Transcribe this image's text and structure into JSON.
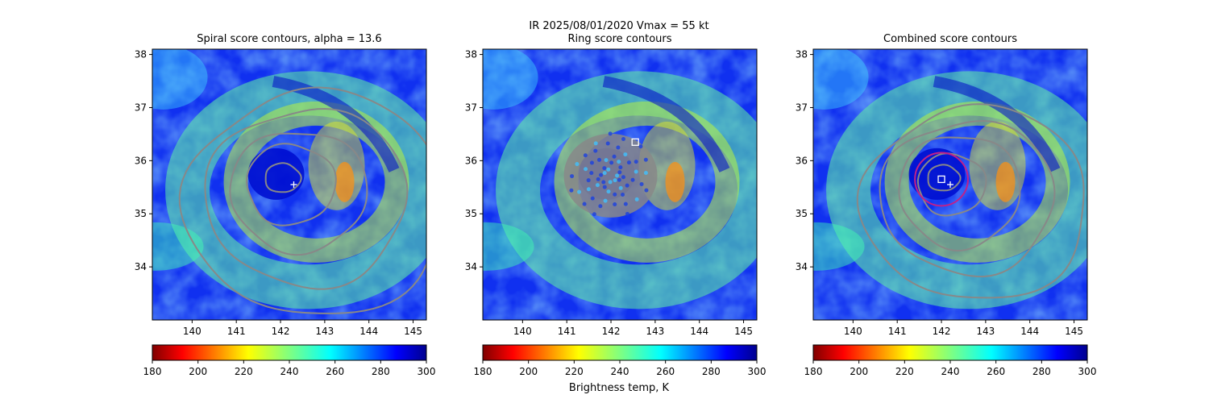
{
  "figure": {
    "suptitle_line1": "IR  2025/08/01/2020    Vmax = 55 kt",
    "colorbar_label": "Brightness temp, K"
  },
  "chart_data": [
    {
      "type": "heatmap",
      "title": "Spiral score contours, alpha = 13.6",
      "xlim": [
        139.1,
        145.3
      ],
      "ylim": [
        33.0,
        38.1
      ],
      "xticks": [
        "140",
        "141",
        "142",
        "143",
        "144",
        "145"
      ],
      "yticks": [
        "34",
        "35",
        "36",
        "37",
        "38"
      ],
      "center": [
        141.9,
        35.75
      ],
      "contours": "spiral",
      "markers": [
        {
          "kind": "plus",
          "lon": 142.3,
          "lat": 35.55
        }
      ],
      "colorbar": {
        "range": [
          180,
          300
        ],
        "ticks": [
          "180",
          "200",
          "220",
          "240",
          "260",
          "280",
          "300"
        ],
        "colormap": "jet_r"
      }
    },
    {
      "type": "heatmap",
      "title": "Ring score contours",
      "xlim": [
        139.1,
        145.3
      ],
      "ylim": [
        33.0,
        38.1
      ],
      "xticks": [
        "140",
        "141",
        "142",
        "143",
        "144",
        "145"
      ],
      "yticks": [
        "34",
        "35",
        "36",
        "37",
        "38"
      ],
      "center": [
        141.9,
        35.75
      ],
      "contours": "ring",
      "markers": [
        {
          "kind": "square",
          "lon": 142.55,
          "lat": 36.35
        }
      ],
      "colorbar": {
        "range": [
          180,
          300
        ],
        "ticks": [
          "180",
          "200",
          "220",
          "240",
          "260",
          "280",
          "300"
        ],
        "colormap": "jet_r"
      }
    },
    {
      "type": "heatmap",
      "title": "Combined score contours",
      "xlim": [
        139.1,
        145.3
      ],
      "ylim": [
        33.0,
        38.1
      ],
      "xticks": [
        "140",
        "141",
        "142",
        "143",
        "144",
        "145"
      ],
      "yticks": [
        "34",
        "35",
        "36",
        "37",
        "38"
      ],
      "center": [
        141.9,
        35.75
      ],
      "contours": "combined",
      "markers": [
        {
          "kind": "plus",
          "lon": 142.2,
          "lat": 35.55
        },
        {
          "kind": "square",
          "lon": 142.0,
          "lat": 35.65
        },
        {
          "kind": "circle",
          "lon": 142.0,
          "lat": 35.65,
          "radius_deg": 0.6,
          "color": "#c0208a"
        }
      ],
      "colorbar": {
        "range": [
          180,
          300
        ],
        "ticks": [
          "180",
          "200",
          "220",
          "240",
          "260",
          "280",
          "300"
        ],
        "colormap": "jet_r"
      }
    }
  ],
  "colors": {
    "contour": "#888888",
    "marker": "#ffffff",
    "circle": "#c0208a"
  }
}
